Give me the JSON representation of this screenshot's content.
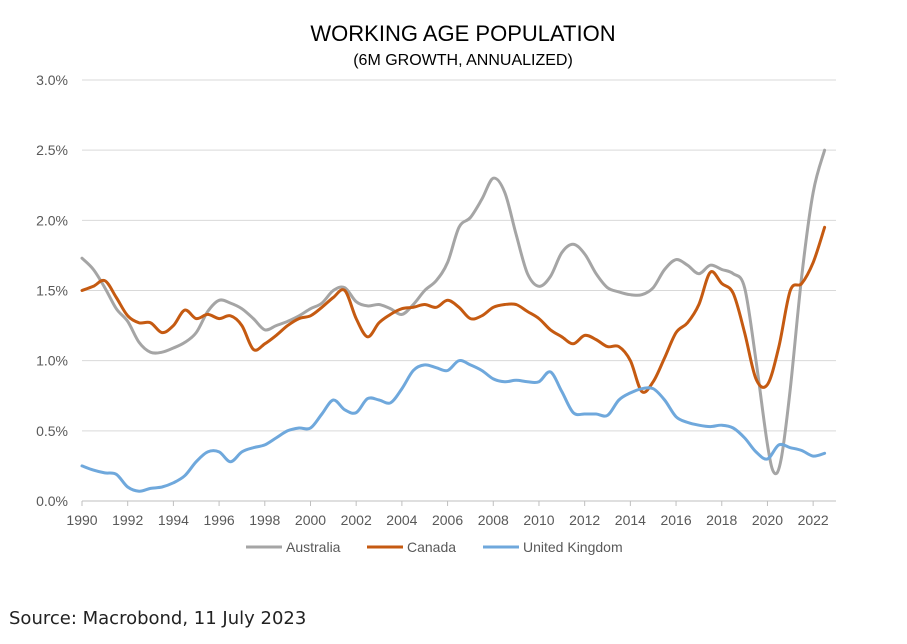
{
  "chart_data": {
    "type": "line",
    "title": "WORKING AGE POPULATION",
    "subtitle": "(6M GROWTH, ANNUALIZED)",
    "xlabel": "",
    "ylabel": "",
    "xlim": [
      1990,
      2023
    ],
    "ylim": [
      0,
      3.0
    ],
    "y_ticks": [
      "0.0%",
      "0.5%",
      "1.0%",
      "1.5%",
      "2.0%",
      "2.5%",
      "3.0%"
    ],
    "x_ticks": [
      "1990",
      "1992",
      "1994",
      "1996",
      "1998",
      "2000",
      "2002",
      "2004",
      "2006",
      "2008",
      "2010",
      "2012",
      "2014",
      "2016",
      "2018",
      "2020",
      "2022"
    ],
    "grid": "horizontal",
    "legend_position": "bottom",
    "series": [
      {
        "name": "Australia",
        "color": "#A5A5A5",
        "points": [
          [
            1990,
            1.73
          ],
          [
            1990.5,
            1.65
          ],
          [
            1991,
            1.52
          ],
          [
            1991.5,
            1.37
          ],
          [
            1992,
            1.28
          ],
          [
            1992.5,
            1.13
          ],
          [
            1993,
            1.06
          ],
          [
            1993.5,
            1.06
          ],
          [
            1994,
            1.09
          ],
          [
            1994.5,
            1.13
          ],
          [
            1995,
            1.2
          ],
          [
            1995.5,
            1.35
          ],
          [
            1996,
            1.43
          ],
          [
            1996.5,
            1.41
          ],
          [
            1997,
            1.37
          ],
          [
            1997.5,
            1.3
          ],
          [
            1998,
            1.22
          ],
          [
            1998.5,
            1.25
          ],
          [
            1999,
            1.28
          ],
          [
            1999.5,
            1.32
          ],
          [
            2000,
            1.37
          ],
          [
            2000.5,
            1.41
          ],
          [
            2001,
            1.5
          ],
          [
            2001.5,
            1.52
          ],
          [
            2002,
            1.42
          ],
          [
            2002.5,
            1.39
          ],
          [
            2003,
            1.4
          ],
          [
            2003.5,
            1.37
          ],
          [
            2004,
            1.33
          ],
          [
            2004.5,
            1.4
          ],
          [
            2005,
            1.5
          ],
          [
            2005.5,
            1.57
          ],
          [
            2006,
            1.7
          ],
          [
            2006.5,
            1.95
          ],
          [
            2007,
            2.02
          ],
          [
            2007.5,
            2.15
          ],
          [
            2008,
            2.3
          ],
          [
            2008.5,
            2.2
          ],
          [
            2009,
            1.9
          ],
          [
            2009.5,
            1.62
          ],
          [
            2010,
            1.53
          ],
          [
            2010.5,
            1.6
          ],
          [
            2011,
            1.77
          ],
          [
            2011.5,
            1.83
          ],
          [
            2012,
            1.76
          ],
          [
            2012.5,
            1.62
          ],
          [
            2013,
            1.52
          ],
          [
            2013.5,
            1.49
          ],
          [
            2014,
            1.47
          ],
          [
            2014.5,
            1.47
          ],
          [
            2015,
            1.52
          ],
          [
            2015.5,
            1.65
          ],
          [
            2016,
            1.72
          ],
          [
            2016.5,
            1.68
          ],
          [
            2017,
            1.62
          ],
          [
            2017.5,
            1.68
          ],
          [
            2018,
            1.65
          ],
          [
            2018.5,
            1.62
          ],
          [
            2019,
            1.52
          ],
          [
            2019.5,
            1.0
          ],
          [
            2020,
            0.4
          ],
          [
            2020.3,
            0.2
          ],
          [
            2020.6,
            0.3
          ],
          [
            2021,
            0.8
          ],
          [
            2021.5,
            1.6
          ],
          [
            2022,
            2.2
          ],
          [
            2022.5,
            2.5
          ]
        ]
      },
      {
        "name": "Canada",
        "color": "#C55A11",
        "points": [
          [
            1990,
            1.5
          ],
          [
            1990.5,
            1.53
          ],
          [
            1991,
            1.57
          ],
          [
            1991.5,
            1.45
          ],
          [
            1992,
            1.32
          ],
          [
            1992.5,
            1.27
          ],
          [
            1993,
            1.27
          ],
          [
            1993.5,
            1.2
          ],
          [
            1994,
            1.25
          ],
          [
            1994.5,
            1.36
          ],
          [
            1995,
            1.3
          ],
          [
            1995.5,
            1.33
          ],
          [
            1996,
            1.3
          ],
          [
            1996.5,
            1.32
          ],
          [
            1997,
            1.25
          ],
          [
            1997.5,
            1.08
          ],
          [
            1998,
            1.12
          ],
          [
            1998.5,
            1.18
          ],
          [
            1999,
            1.25
          ],
          [
            1999.5,
            1.3
          ],
          [
            2000,
            1.32
          ],
          [
            2000.5,
            1.38
          ],
          [
            2001,
            1.45
          ],
          [
            2001.5,
            1.5
          ],
          [
            2002,
            1.3
          ],
          [
            2002.5,
            1.17
          ],
          [
            2003,
            1.27
          ],
          [
            2003.5,
            1.33
          ],
          [
            2004,
            1.37
          ],
          [
            2004.5,
            1.38
          ],
          [
            2005,
            1.4
          ],
          [
            2005.5,
            1.38
          ],
          [
            2006,
            1.43
          ],
          [
            2006.5,
            1.38
          ],
          [
            2007,
            1.3
          ],
          [
            2007.5,
            1.32
          ],
          [
            2008,
            1.38
          ],
          [
            2008.5,
            1.4
          ],
          [
            2009,
            1.4
          ],
          [
            2009.5,
            1.35
          ],
          [
            2010,
            1.3
          ],
          [
            2010.5,
            1.22
          ],
          [
            2011,
            1.17
          ],
          [
            2011.5,
            1.12
          ],
          [
            2012,
            1.18
          ],
          [
            2012.5,
            1.15
          ],
          [
            2013,
            1.1
          ],
          [
            2013.5,
            1.1
          ],
          [
            2014,
            1.0
          ],
          [
            2014.5,
            0.78
          ],
          [
            2015,
            0.85
          ],
          [
            2015.5,
            1.02
          ],
          [
            2016,
            1.2
          ],
          [
            2016.5,
            1.27
          ],
          [
            2017,
            1.4
          ],
          [
            2017.5,
            1.63
          ],
          [
            2018,
            1.55
          ],
          [
            2018.5,
            1.48
          ],
          [
            2019,
            1.2
          ],
          [
            2019.5,
            0.87
          ],
          [
            2020,
            0.83
          ],
          [
            2020.5,
            1.1
          ],
          [
            2021,
            1.5
          ],
          [
            2021.5,
            1.55
          ],
          [
            2022,
            1.7
          ],
          [
            2022.5,
            1.95
          ]
        ]
      },
      {
        "name": "United Kingdom",
        "color": "#6FA8DC",
        "points": [
          [
            1990,
            0.25
          ],
          [
            1990.5,
            0.22
          ],
          [
            1991,
            0.2
          ],
          [
            1991.5,
            0.19
          ],
          [
            1992,
            0.1
          ],
          [
            1992.5,
            0.07
          ],
          [
            1993,
            0.09
          ],
          [
            1993.5,
            0.1
          ],
          [
            1994,
            0.13
          ],
          [
            1994.5,
            0.18
          ],
          [
            1995,
            0.28
          ],
          [
            1995.5,
            0.35
          ],
          [
            1996,
            0.35
          ],
          [
            1996.5,
            0.28
          ],
          [
            1997,
            0.35
          ],
          [
            1997.5,
            0.38
          ],
          [
            1998,
            0.4
          ],
          [
            1998.5,
            0.45
          ],
          [
            1999,
            0.5
          ],
          [
            1999.5,
            0.52
          ],
          [
            2000,
            0.52
          ],
          [
            2000.5,
            0.62
          ],
          [
            2001,
            0.72
          ],
          [
            2001.5,
            0.65
          ],
          [
            2002,
            0.63
          ],
          [
            2002.5,
            0.73
          ],
          [
            2003,
            0.72
          ],
          [
            2003.5,
            0.7
          ],
          [
            2004,
            0.8
          ],
          [
            2004.5,
            0.93
          ],
          [
            2005,
            0.97
          ],
          [
            2005.5,
            0.95
          ],
          [
            2006,
            0.93
          ],
          [
            2006.5,
            1.0
          ],
          [
            2007,
            0.97
          ],
          [
            2007.5,
            0.93
          ],
          [
            2008,
            0.87
          ],
          [
            2008.5,
            0.85
          ],
          [
            2009,
            0.86
          ],
          [
            2009.5,
            0.85
          ],
          [
            2010,
            0.85
          ],
          [
            2010.5,
            0.92
          ],
          [
            2011,
            0.78
          ],
          [
            2011.5,
            0.63
          ],
          [
            2012,
            0.62
          ],
          [
            2012.5,
            0.62
          ],
          [
            2013,
            0.61
          ],
          [
            2013.5,
            0.72
          ],
          [
            2014,
            0.77
          ],
          [
            2014.5,
            0.8
          ],
          [
            2015,
            0.8
          ],
          [
            2015.5,
            0.72
          ],
          [
            2016,
            0.6
          ],
          [
            2016.5,
            0.56
          ],
          [
            2017,
            0.54
          ],
          [
            2017.5,
            0.53
          ],
          [
            2018,
            0.54
          ],
          [
            2018.5,
            0.52
          ],
          [
            2019,
            0.45
          ],
          [
            2019.5,
            0.35
          ],
          [
            2020,
            0.3
          ],
          [
            2020.5,
            0.4
          ],
          [
            2021,
            0.38
          ],
          [
            2021.5,
            0.36
          ],
          [
            2022,
            0.32
          ],
          [
            2022.5,
            0.34
          ]
        ]
      }
    ]
  },
  "source": "Source: Macrobond, 11 July 2023"
}
